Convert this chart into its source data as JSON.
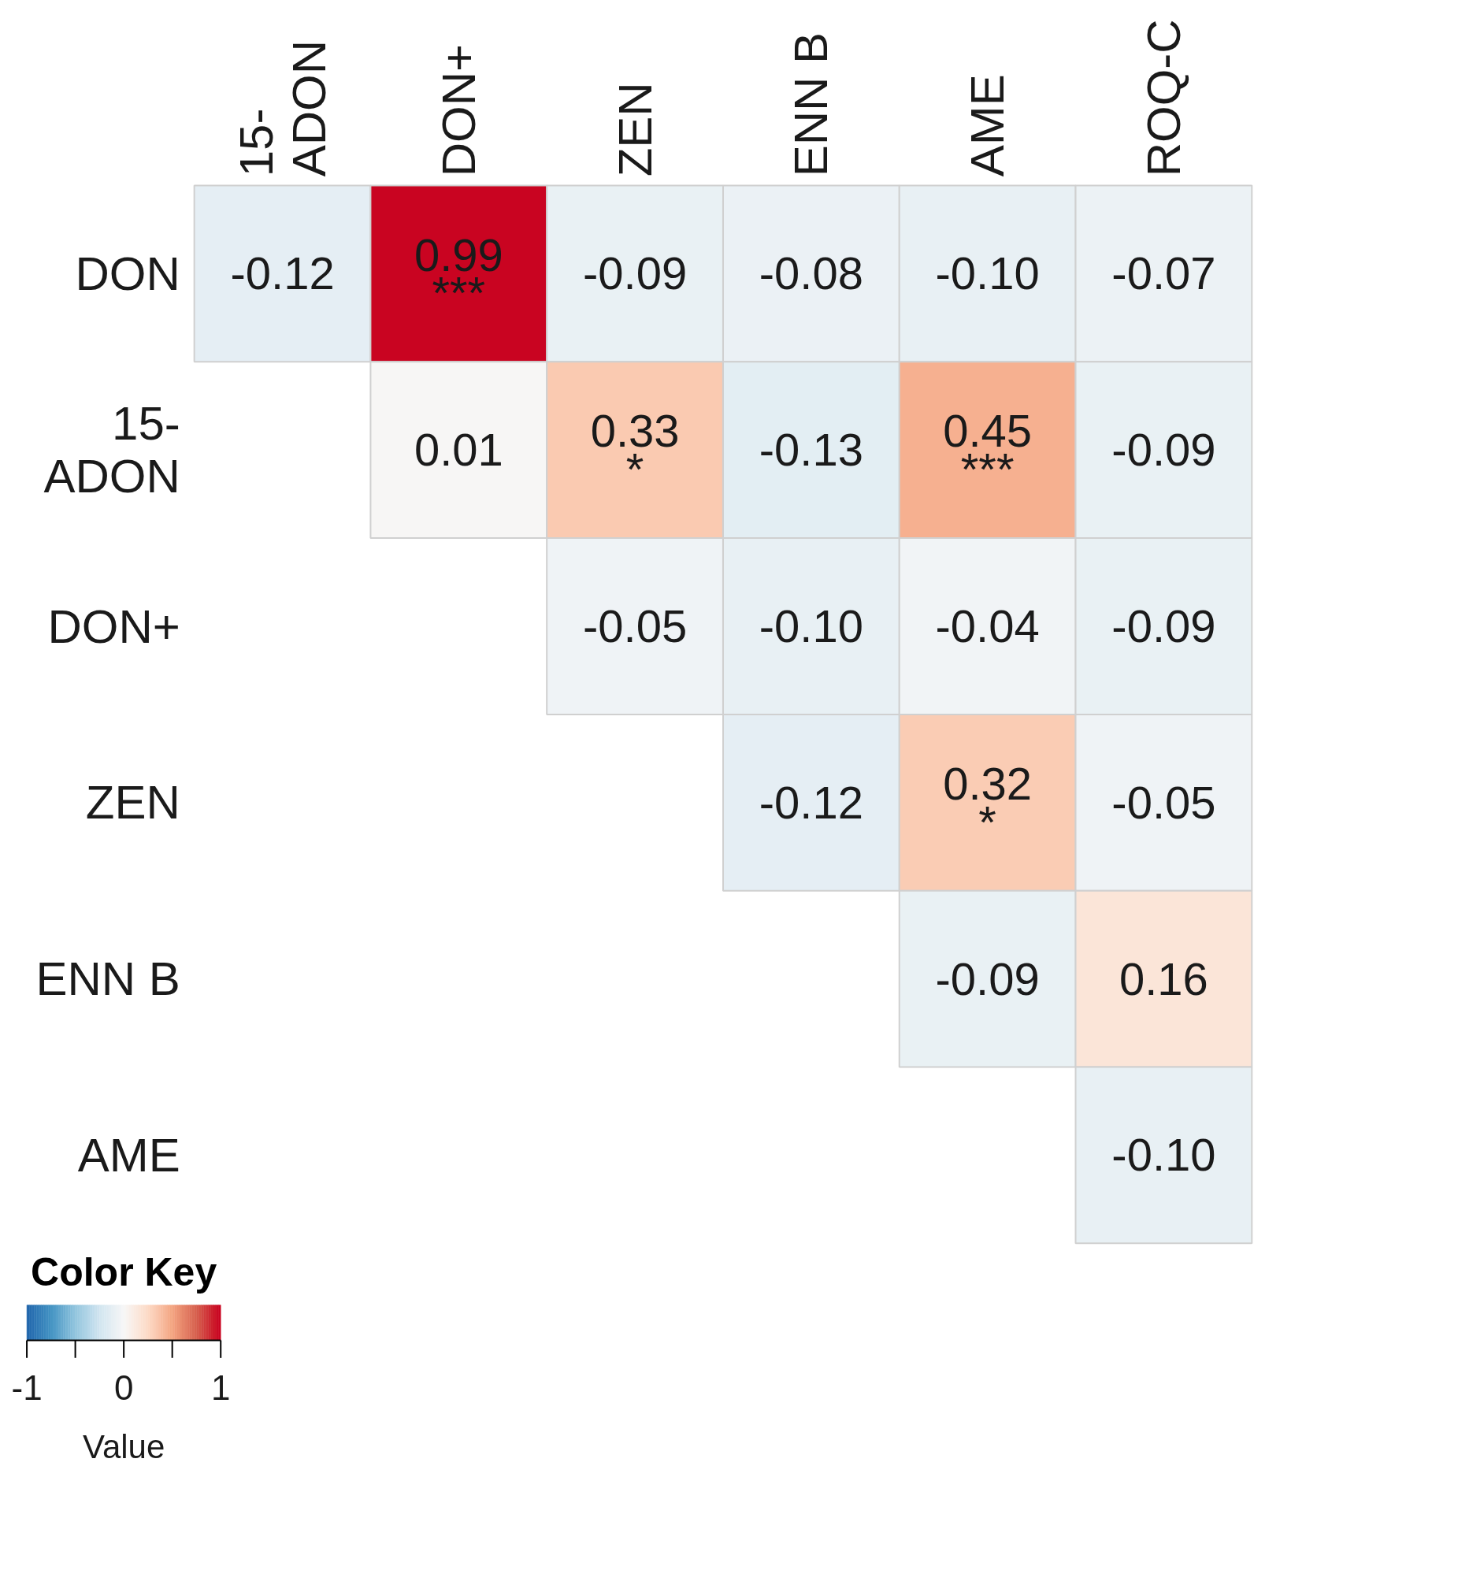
{
  "chart_data": {
    "type": "heatmap",
    "categories": [
      "15-ADON",
      "DON+",
      "ZEN",
      "ENN B",
      "AME",
      "ROQ-C"
    ],
    "y_categories": [
      "DON",
      "15-ADON",
      "DON+",
      "ZEN",
      "ENN B",
      "AME"
    ],
    "cells": [
      [
        -0.12,
        0.99,
        -0.09,
        -0.08,
        -0.1,
        -0.07
      ],
      [
        null,
        0.01,
        0.33,
        -0.13,
        0.45,
        -0.09
      ],
      [
        null,
        null,
        -0.05,
        -0.1,
        -0.04,
        -0.09
      ],
      [
        null,
        null,
        null,
        -0.12,
        0.32,
        -0.05
      ],
      [
        null,
        null,
        null,
        null,
        -0.09,
        0.16
      ],
      [
        null,
        null,
        null,
        null,
        null,
        -0.1
      ]
    ],
    "cell_labels": [
      [
        "-0.12",
        "0.99\n***",
        "-0.09",
        "-0.08",
        "-0.10",
        "-0.07"
      ],
      [
        null,
        "0.01",
        "0.33\n*",
        "-0.13",
        "0.45\n***",
        "-0.09"
      ],
      [
        null,
        null,
        "-0.05",
        "-0.10",
        "-0.04",
        "-0.09"
      ],
      [
        null,
        null,
        null,
        "-0.12",
        "0.32\n*",
        "-0.05"
      ],
      [
        null,
        null,
        null,
        null,
        "-0.09",
        "0.16"
      ],
      [
        null,
        null,
        null,
        null,
        null,
        "-0.10"
      ]
    ],
    "clim": [
      -1,
      1
    ],
    "cticks": [
      {
        "value": -1,
        "label": "-1"
      },
      {
        "value": -0.5,
        "label": null
      },
      {
        "value": 0,
        "label": "0"
      },
      {
        "value": 0.5,
        "label": null
      },
      {
        "value": 1,
        "label": "1"
      }
    ],
    "legend_title": "Color Key",
    "clabel": "Value"
  }
}
